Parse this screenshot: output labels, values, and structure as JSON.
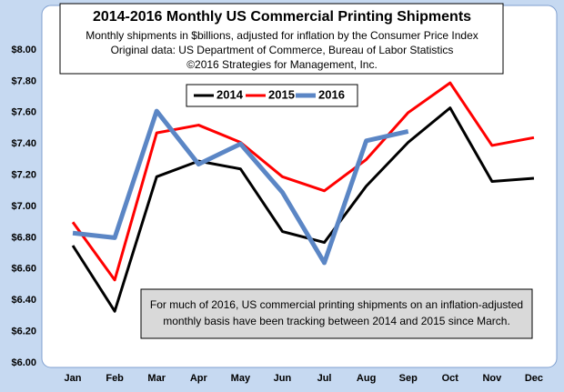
{
  "chart_data": {
    "type": "line",
    "title": "2014-2016 Monthly US Commercial Printing Shipments",
    "subtitle": [
      "Monthly shipments in $billions, adjusted for inflation by the Consumer Price Index",
      "Original data: US Department of Commerce, Bureau of Labor Statistics",
      "©2016 Strategies for Management, Inc."
    ],
    "annotation": [
      "For much of 2016, US commercial printing shipments on an inflation-adjusted",
      "monthly basis have been tracking between 2014 and 2015 since March."
    ],
    "categories": [
      "Jan",
      "Feb",
      "Mar",
      "Apr",
      "May",
      "Jun",
      "Jul",
      "Aug",
      "Sep",
      "Oct",
      "Nov",
      "Dec"
    ],
    "series": [
      {
        "name": "2014",
        "color": "#000000",
        "values": [
          6.75,
          6.33,
          7.19,
          7.29,
          7.24,
          6.84,
          6.77,
          7.13,
          7.41,
          7.63,
          7.16,
          7.18
        ]
      },
      {
        "name": "2015",
        "color": "#ff0000",
        "values": [
          6.9,
          6.53,
          7.47,
          7.52,
          7.41,
          7.19,
          7.1,
          7.3,
          7.6,
          7.79,
          7.39,
          7.44
        ]
      },
      {
        "name": "2016",
        "color": "#5b86c5",
        "values": [
          6.83,
          6.8,
          7.61,
          7.27,
          7.4,
          7.09,
          6.64,
          7.42,
          7.48,
          null,
          null,
          null
        ]
      }
    ],
    "ylim": [
      6,
      8
    ],
    "yticks": [
      {
        "value": 6,
        "label": "$6.00"
      },
      {
        "value": 6.2,
        "label": "$6.20"
      },
      {
        "value": 6.4,
        "label": "$6.40"
      },
      {
        "value": 6.6,
        "label": "$6.60"
      },
      {
        "value": 6.8,
        "label": "$6.80"
      },
      {
        "value": 7,
        "label": "$7.00"
      },
      {
        "value": 7.2,
        "label": "$7.20"
      },
      {
        "value": 7.4,
        "label": "$7.40"
      },
      {
        "value": 7.6,
        "label": "$7.60"
      },
      {
        "value": 7.8,
        "label": "$7.80"
      },
      {
        "value": 8,
        "label": "$8.00"
      }
    ],
    "grid": false
  }
}
